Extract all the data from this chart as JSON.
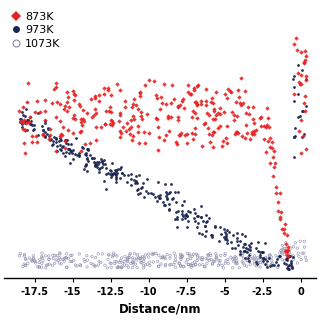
{
  "title": "",
  "xlabel": "Distance/nm",
  "xlim": [
    -19.5,
    1.0
  ],
  "xticks": [
    -17.5,
    -15,
    -12.5,
    -10,
    -7.5,
    -5,
    -2.5,
    0
  ],
  "xtick_labels": [
    "-17.5",
    "-15",
    "-12.5",
    "-10",
    "-7.5",
    "-5",
    "-2.5",
    "0"
  ],
  "ylim": [
    -0.03,
    1.05
  ],
  "legend_labels": [
    "873K",
    "973K",
    "1073K"
  ],
  "legend_colors": [
    "#e82020",
    "#1a2550",
    "#8888aa"
  ],
  "bg_color": "#ffffff",
  "scatter_size_red": 5,
  "scatter_size_dark": 4,
  "scatter_size_gray": 3,
  "figsize": [
    3.2,
    3.2
  ],
  "dpi": 100
}
